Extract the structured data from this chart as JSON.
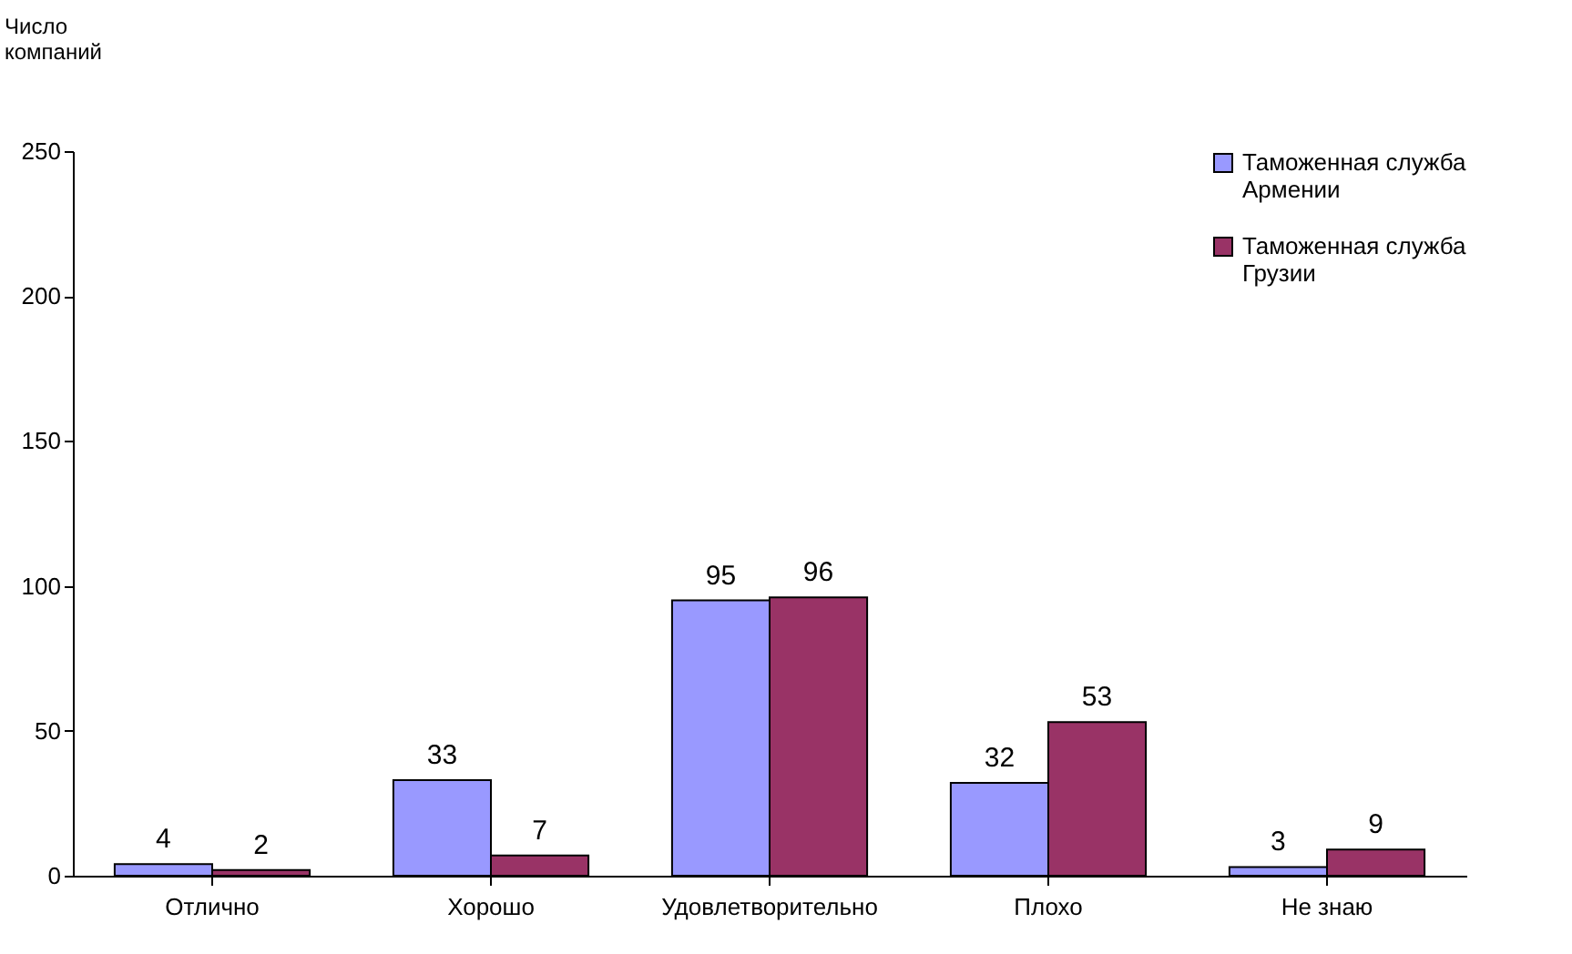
{
  "chart_data": {
    "type": "bar",
    "ylabel": "Число компаний",
    "categories": [
      "Отлично",
      "Хорошо",
      "Удовлетворительно",
      "Плохо",
      "Не знаю"
    ],
    "series": [
      {
        "name": "Таможенная служба Армении",
        "color": "#9999ff",
        "values": [
          4,
          33,
          95,
          32,
          3
        ]
      },
      {
        "name": "Таможенная служба Грузии",
        "color": "#993366",
        "values": [
          2,
          7,
          96,
          53,
          9
        ]
      }
    ],
    "ylim": [
      0,
      250
    ],
    "yticks": [
      0,
      50,
      100,
      150,
      200,
      250
    ],
    "data_labels": true,
    "legend": "top right"
  }
}
